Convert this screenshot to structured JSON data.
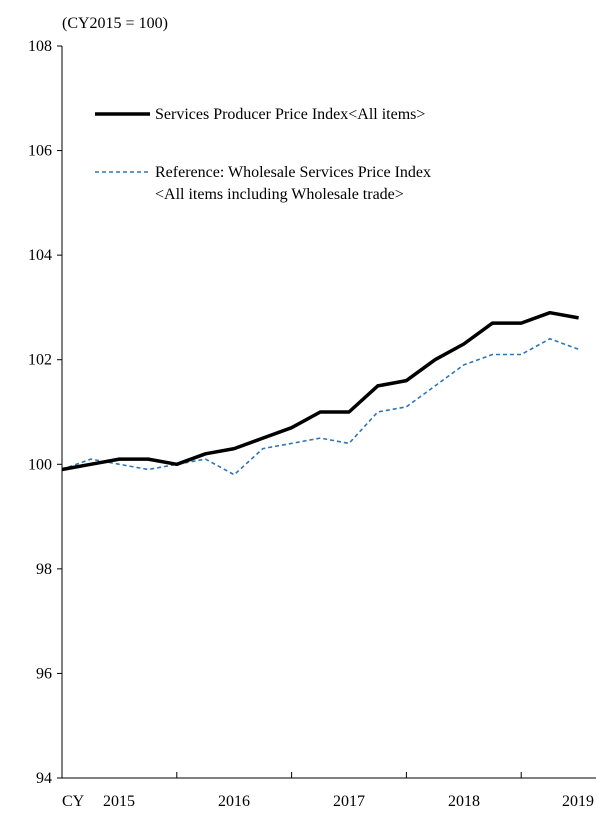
{
  "chart_data": {
    "type": "line",
    "unit_label": "(CY2015 = 100)",
    "x_prefix": "CY",
    "year_labels": [
      "2015",
      "2016",
      "2017",
      "2018",
      "2019"
    ],
    "x": [
      "2015Q1",
      "2015Q2",
      "2015Q3",
      "2015Q4",
      "2016Q1",
      "2016Q2",
      "2016Q3",
      "2016Q4",
      "2017Q1",
      "2017Q2",
      "2017Q3",
      "2017Q4",
      "2018Q1",
      "2018Q2",
      "2018Q3",
      "2018Q4",
      "2019Q1",
      "2019Q2",
      "2019Q3"
    ],
    "ylim": [
      94,
      108
    ],
    "y_ticks": [
      94,
      96,
      98,
      100,
      102,
      104,
      106,
      108
    ],
    "grid": false,
    "legend_position": "top-left",
    "series": [
      {
        "name": "Services Producer Price Index<All items>",
        "style": "solid",
        "color": "#000000",
        "values": [
          99.9,
          100.0,
          100.1,
          100.1,
          100.0,
          100.2,
          100.3,
          100.5,
          100.7,
          101.0,
          101.0,
          101.5,
          101.6,
          102.0,
          102.3,
          102.7,
          102.7,
          102.9,
          102.8
        ]
      },
      {
        "name": "Reference: Wholesale Services Price Index",
        "name_line2": "<All items including Wholesale trade>",
        "style": "dashed",
        "color": "#2e75b6",
        "values": [
          99.9,
          100.1,
          100.0,
          99.9,
          100.0,
          100.1,
          99.8,
          100.3,
          100.4,
          100.5,
          100.4,
          101.0,
          101.1,
          101.5,
          101.9,
          102.1,
          102.1,
          102.4,
          102.2
        ]
      }
    ]
  }
}
